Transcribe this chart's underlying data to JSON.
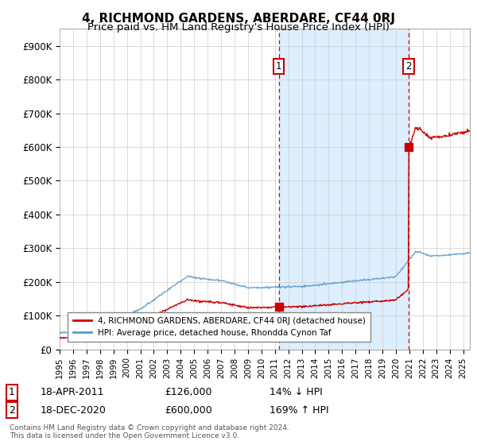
{
  "title": "4, RICHMOND GARDENS, ABERDARE, CF44 0RJ",
  "subtitle": "Price paid vs. HM Land Registry's House Price Index (HPI)",
  "title_fontsize": 11,
  "subtitle_fontsize": 9.5,
  "hpi_color": "#5599cc",
  "price_color": "#cc0000",
  "background_color": "#ffffff",
  "grid_color": "#cccccc",
  "shade_color": "#ddeeff",
  "ylim": [
    0,
    950000
  ],
  "yticks": [
    0,
    100000,
    200000,
    300000,
    400000,
    500000,
    600000,
    700000,
    800000,
    900000
  ],
  "ytick_labels": [
    "£0",
    "£100K",
    "£200K",
    "£300K",
    "£400K",
    "£500K",
    "£600K",
    "£700K",
    "£800K",
    "£900K"
  ],
  "transaction1": {
    "date": "18-APR-2011",
    "price": 126000,
    "label": "1",
    "pct": "14% ↓ HPI",
    "year": 2011.29
  },
  "transaction2": {
    "date": "18-DEC-2020",
    "price": 600000,
    "label": "2",
    "pct": "169% ↑ HPI",
    "year": 2020.96
  },
  "legend_line1": "4, RICHMOND GARDENS, ABERDARE, CF44 0RJ (detached house)",
  "legend_line2": "HPI: Average price, detached house, Rhondda Cynon Taf",
  "footer": "Contains HM Land Registry data © Crown copyright and database right 2024.\nThis data is licensed under the Open Government Licence v3.0.",
  "xlim_start": 1995,
  "xlim_end": 2025.5
}
